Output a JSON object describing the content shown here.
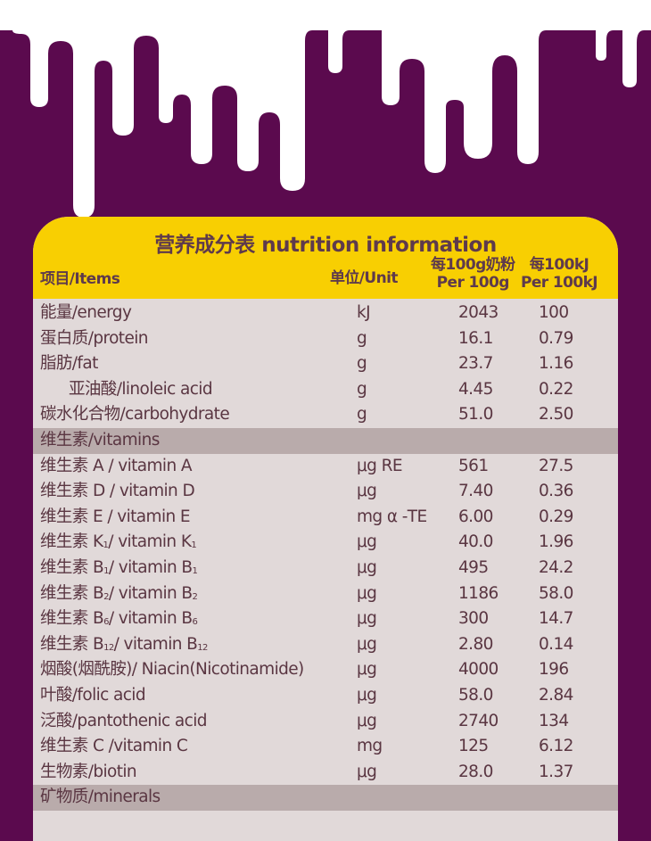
{
  "colors": {
    "background": "#5b0a4e",
    "header": "#f8cf02",
    "row": "#e1d9d9",
    "section": "#b9abab",
    "text": "#5a3642"
  },
  "title": "营养成分表 nutrition information",
  "headers": {
    "item": "项目/Items",
    "unit": "单位/Unit",
    "per100g_cn": "每100g奶粉",
    "per100g_en": "Per 100g",
    "per100kj_cn": "每100kJ",
    "per100kj_en": "Per 100kJ"
  },
  "rows": [
    {
      "name": "能量/energy",
      "unit": "kJ",
      "per100g": "2043",
      "per100kj": "100"
    },
    {
      "name": "蛋白质/protein",
      "unit": "g",
      "per100g": "16.1",
      "per100kj": "0.79"
    },
    {
      "name": "脂肪/fat",
      "unit": "g",
      "per100g": "23.7",
      "per100kj": "1.16"
    },
    {
      "name": "亚油酸/linoleic acid",
      "unit": "g",
      "per100g": "4.45",
      "per100kj": "0.22",
      "indent": true
    },
    {
      "name": "碳水化合物/carbohydrate",
      "unit": "g",
      "per100g": "51.0",
      "per100kj": "2.50"
    },
    {
      "name": "维生素/vitamins",
      "section": true
    },
    {
      "name": "维生素 A / vitamin A",
      "unit": "μg RE",
      "per100g": "561",
      "per100kj": "27.5"
    },
    {
      "name": "维生素 D / vitamin D",
      "unit": "μg",
      "per100g": "7.40",
      "per100kj": "0.36"
    },
    {
      "name": "维生素 E / vitamin E",
      "unit": "mg α -TE",
      "per100g": "6.00",
      "per100kj": "0.29"
    },
    {
      "name": "维生素 K",
      "sub": "1",
      "name2": "/ vitamin K",
      "sub2": "1",
      "unit": "μg",
      "per100g": "40.0",
      "per100kj": "1.96"
    },
    {
      "name": "维生素 B",
      "sub": "1",
      "name2": "/ vitamin B",
      "sub2": "1",
      "unit": "μg",
      "per100g": "495",
      "per100kj": "24.2"
    },
    {
      "name": "维生素 B",
      "sub": "2",
      "name2": "/ vitamin B",
      "sub2": "2",
      "unit": "μg",
      "per100g": "1186",
      "per100kj": "58.0"
    },
    {
      "name": "维生素 B",
      "sub": "6",
      "name2": "/ vitamin B",
      "sub2": "6",
      "unit": "μg",
      "per100g": "300",
      "per100kj": "14.7"
    },
    {
      "name": "维生素 B",
      "sub": "12",
      "name2": "/ vitamin B",
      "sub2": "12",
      "unit": "μg",
      "per100g": "2.80",
      "per100kj": "0.14"
    },
    {
      "name": "烟酸(烟酰胺)/ Niacin(Nicotinamide)",
      "unit": "μg",
      "per100g": "4000",
      "per100kj": "196"
    },
    {
      "name": "叶酸/folic acid",
      "unit": "μg",
      "per100g": "58.0",
      "per100kj": "2.84"
    },
    {
      "name": "泛酸/pantothenic acid",
      "unit": "μg",
      "per100g": "2740",
      "per100kj": "134"
    },
    {
      "name": "维生素 C /vitamin C",
      "unit": "mg",
      "per100g": "125",
      "per100kj": "6.12"
    },
    {
      "name": "生物素/biotin",
      "unit": "μg",
      "per100g": "28.0",
      "per100kj": "1.37"
    },
    {
      "name": "矿物质/minerals",
      "section": true
    }
  ]
}
